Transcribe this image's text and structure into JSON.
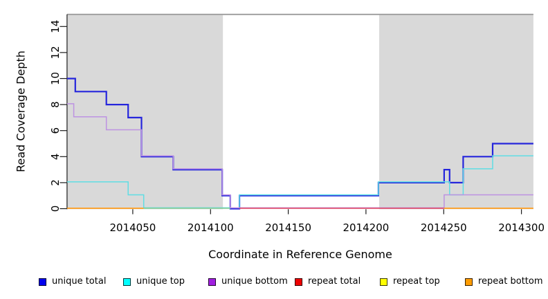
{
  "chart_data": {
    "type": "line",
    "subtype": "step-coverage",
    "title": "",
    "xlabel": "Coordinate in Reference Genome",
    "ylabel": "Read Coverage Depth",
    "xlim": [
      2014007.7,
      2014307.7
    ],
    "ylim": [
      0,
      14.93
    ],
    "grid": false,
    "legend_position": "bottom",
    "x_ticks": [
      2014050,
      2014100,
      2014150,
      2014200,
      2014250,
      2014300
    ],
    "x_tick_labels": [
      "2014050",
      "2014100",
      "2014150",
      "2014200",
      "2014250",
      "2014300"
    ],
    "y_ticks": [
      0,
      2,
      4,
      6,
      8,
      10,
      12,
      14
    ],
    "y_tick_labels": [
      "0",
      "2",
      "4",
      "6",
      "8",
      "10",
      "12",
      "14"
    ],
    "shaded_regions": [
      {
        "from": 2014007.7,
        "to": 2014108.0,
        "color": "#D9D9D9"
      },
      {
        "from": 2014208.5,
        "to": 2014307.7,
        "color": "#D9D9D9"
      }
    ],
    "series": [
      {
        "name": "unique total",
        "legend_color": "#0000EE",
        "line_color": "#2525DC",
        "steps": [
          [
            2014007.7,
            10
          ],
          [
            2014013,
            9
          ],
          [
            2014033,
            8
          ],
          [
            2014047,
            7
          ],
          [
            2014055.6,
            4
          ],
          [
            2014076,
            3
          ],
          [
            2014107.5,
            1
          ],
          [
            2014112.7,
            0
          ],
          [
            2014118.6,
            1
          ],
          [
            2014208,
            2
          ],
          [
            2014250.3,
            3
          ],
          [
            2014253.8,
            2
          ],
          [
            2014262.5,
            4
          ],
          [
            2014281.5,
            5
          ],
          [
            2014307.7,
            5
          ]
        ]
      },
      {
        "name": "unique top",
        "legend_color": "#00FFFF",
        "line_color": "#5FDDE4",
        "steps": [
          [
            2014007.7,
            2
          ],
          [
            2014047,
            1
          ],
          [
            2014057,
            0
          ],
          [
            2014118.6,
            1
          ],
          [
            2014208,
            2
          ],
          [
            2014253.8,
            1
          ],
          [
            2014262.5,
            3
          ],
          [
            2014281.5,
            4
          ],
          [
            2014307.7,
            4
          ]
        ]
      },
      {
        "name": "unique bottom",
        "legend_color": "#A11FE0",
        "line_color": "#BD92E2",
        "steps": [
          [
            2014007.7,
            8
          ],
          [
            2014012,
            7
          ],
          [
            2014033,
            6
          ],
          [
            2014055.6,
            4
          ],
          [
            2014076,
            3
          ],
          [
            2014107.5,
            1
          ],
          [
            2014112.7,
            0
          ],
          [
            2014250.3,
            1
          ],
          [
            2014307.7,
            1
          ]
        ]
      },
      {
        "name": "repeat total",
        "legend_color": "#EE0000",
        "line_color": "#DE5070",
        "steps": [
          [
            2014007.7,
            0
          ],
          [
            2014307.7,
            0
          ]
        ]
      },
      {
        "name": "repeat top",
        "legend_color": "#FFFF00",
        "line_color": "#85CF9E",
        "steps": [
          [
            2014007.7,
            0
          ],
          [
            2014307.7,
            0
          ]
        ]
      },
      {
        "name": "repeat bottom",
        "legend_color": "#FF9C00",
        "line_color": "#FF9C1A",
        "steps": [
          [
            2014007.7,
            0
          ],
          [
            2014307.7,
            0
          ]
        ]
      }
    ],
    "baseline_render_segments": [
      {
        "from": 2014007.7,
        "to": 2014057.0,
        "color": "#FF9C1A"
      },
      {
        "from": 2014057.0,
        "to": 2014112.7,
        "color": "#85CF9E"
      },
      {
        "from": 2014118.6,
        "to": 2014250.3,
        "color": "#DE5070"
      },
      {
        "from": 2014250.3,
        "to": 2014307.7,
        "color": "#FF9C1A"
      }
    ],
    "frame": {
      "top_border_color": "#9C9C9C",
      "axis_color": "#1A1A1A",
      "band_color": "#D9D9D9"
    }
  },
  "legend": {
    "items": [
      {
        "label": "unique total",
        "color": "#0000EE"
      },
      {
        "label": "unique top",
        "color": "#00FFFF"
      },
      {
        "label": "unique bottom",
        "color": "#A11FE0"
      },
      {
        "label": "repeat total",
        "color": "#EE0000"
      },
      {
        "label": "repeat top",
        "color": "#FFFF00"
      },
      {
        "label": "repeat bottom",
        "color": "#FF9C00"
      }
    ]
  }
}
